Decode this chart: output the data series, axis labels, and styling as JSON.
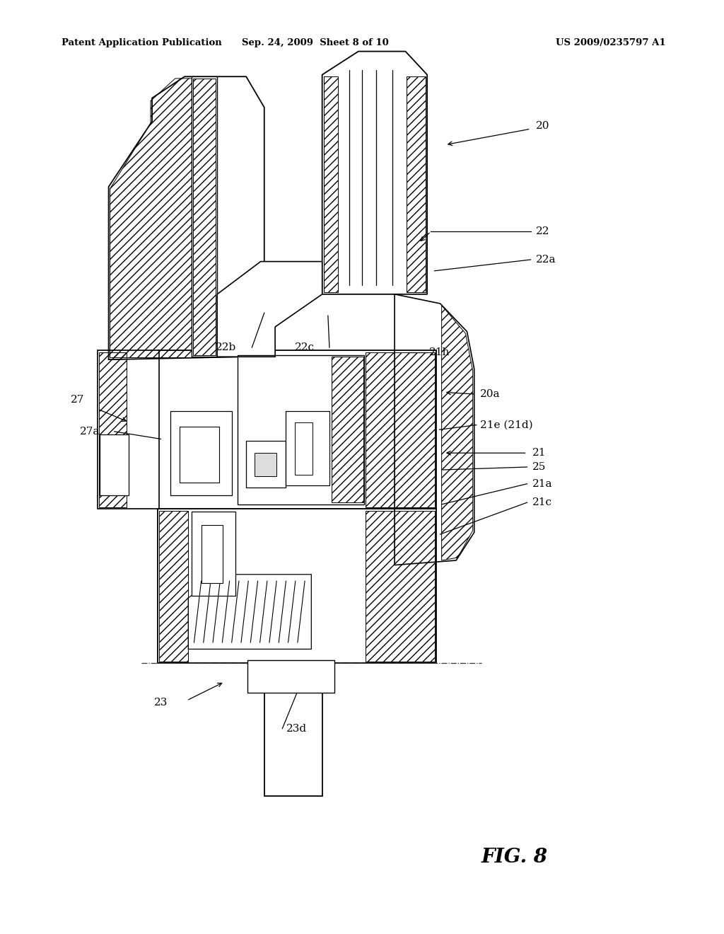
{
  "bg_color": "#ffffff",
  "header_left": "Patent Application Publication",
  "header_mid": "Sep. 24, 2009  Sheet 8 of 10",
  "header_right": "US 2009/0235797 A1",
  "fig_caption": "FIG. 8",
  "line_color": "#000000",
  "lw_main": 1.3,
  "lw_thin": 0.8,
  "label_fontsize": 11,
  "header_fontsize": 9.5
}
